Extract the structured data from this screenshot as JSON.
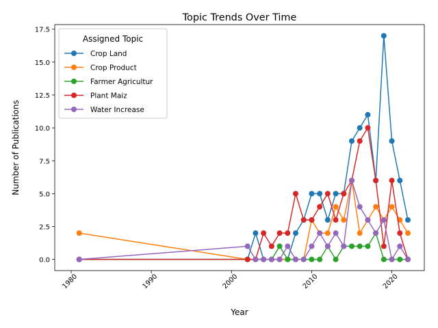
{
  "chart_data": {
    "type": "line",
    "title": "Topic Trends Over Time",
    "xlabel": "Year",
    "ylabel": "Number of Publications",
    "xlim": [
      1977.95,
      2024.05
    ],
    "ylim": [
      -0.85,
      17.85
    ],
    "xticks": [
      1980,
      1990,
      2000,
      2010,
      2020
    ],
    "yticks": [
      0.0,
      2.5,
      5.0,
      7.5,
      10.0,
      12.5,
      15.0,
      17.5
    ],
    "ytick_labels": [
      "0.0",
      "2.5",
      "5.0",
      "7.5",
      "10.0",
      "12.5",
      "15.0",
      "17.5"
    ],
    "grid": false,
    "legend": {
      "title": "Assigned Topic",
      "position": "upper-left"
    },
    "series": [
      {
        "name": "Crop Land",
        "color": "#1f77b4",
        "x": [
          1981,
          2002,
          2003,
          2004,
          2005,
          2006,
          2007,
          2008,
          2009,
          2010,
          2011,
          2012,
          2013,
          2014,
          2015,
          2016,
          2017,
          2018,
          2019,
          2020,
          2021,
          2022
        ],
        "y": [
          0,
          0,
          2,
          0,
          0,
          0,
          0,
          2,
          3,
          5,
          5,
          3,
          5,
          5,
          9,
          10,
          11,
          6,
          17,
          9,
          6,
          3
        ]
      },
      {
        "name": "Crop Product",
        "color": "#ff7f0e",
        "x": [
          1981,
          2002,
          2003,
          2004,
          2005,
          2006,
          2007,
          2008,
          2009,
          2010,
          2011,
          2012,
          2013,
          2014,
          2015,
          2016,
          2017,
          2018,
          2019,
          2020,
          2021,
          2022
        ],
        "y": [
          2,
          0,
          0,
          0,
          0,
          0,
          0,
          0,
          0,
          3,
          2,
          2,
          4,
          3,
          6,
          2,
          3,
          4,
          3,
          4,
          3,
          2
        ]
      },
      {
        "name": "Farmer Agricultur",
        "color": "#2ca02c",
        "x": [
          1981,
          2002,
          2003,
          2004,
          2005,
          2006,
          2007,
          2008,
          2009,
          2010,
          2011,
          2012,
          2013,
          2014,
          2015,
          2016,
          2017,
          2018,
          2019,
          2020,
          2021,
          2022
        ],
        "y": [
          0,
          0,
          0,
          0,
          0,
          1,
          0,
          0,
          0,
          0,
          0,
          1,
          0,
          1,
          1,
          1,
          1,
          2,
          0,
          0,
          0,
          0
        ]
      },
      {
        "name": "Plant Maiz",
        "color": "#d62728",
        "x": [
          1981,
          2002,
          2003,
          2004,
          2005,
          2006,
          2007,
          2008,
          2009,
          2010,
          2011,
          2012,
          2013,
          2014,
          2015,
          2016,
          2017,
          2018,
          2019,
          2020,
          2021,
          2022
        ],
        "y": [
          0,
          0,
          0,
          2,
          1,
          2,
          2,
          5,
          3,
          3,
          4,
          5,
          3,
          5,
          6,
          9,
          10,
          6,
          1,
          6,
          2,
          0
        ]
      },
      {
        "name": "Water Increase",
        "color": "#9467bd",
        "x": [
          1981,
          2002,
          2003,
          2004,
          2005,
          2006,
          2007,
          2008,
          2009,
          2010,
          2011,
          2012,
          2013,
          2014,
          2015,
          2016,
          2017,
          2018,
          2019,
          2020,
          2021,
          2022
        ],
        "y": [
          0,
          1,
          0,
          0,
          0,
          0,
          1,
          0,
          0,
          1,
          2,
          1,
          2,
          1,
          6,
          4,
          3,
          2,
          3,
          0,
          1,
          0
        ]
      }
    ]
  }
}
